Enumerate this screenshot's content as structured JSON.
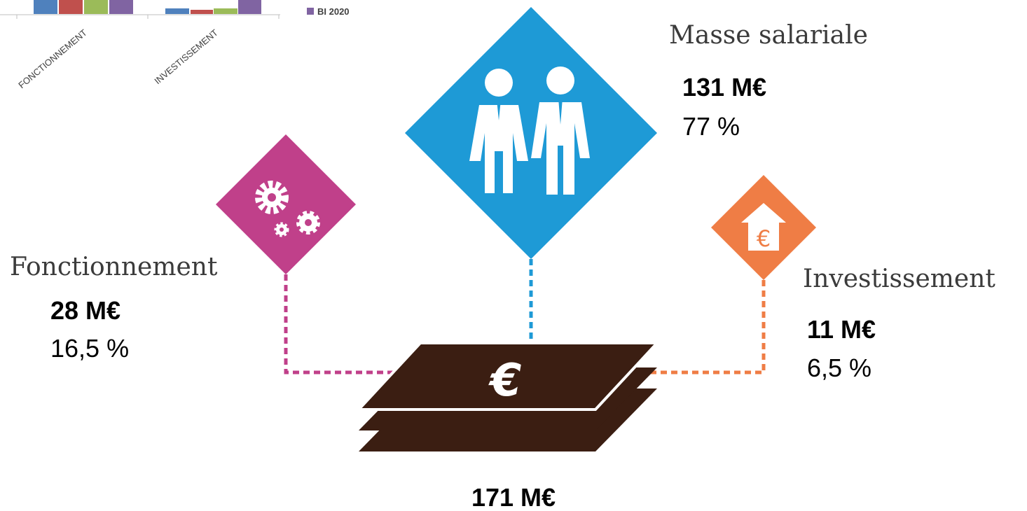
{
  "chart_excerpt": {
    "categories": [
      "FONCTIONNEMENT",
      "INVESTISSEMENT"
    ],
    "legend": "BI 2020"
  },
  "items": [
    {
      "label": "Masse salariale",
      "amount": "131 M€",
      "share": "77 %"
    },
    {
      "label": "Fonctionnement",
      "amount": "28 M€",
      "share": "16,5 %"
    },
    {
      "label": "Investissement",
      "amount": "11 M€",
      "share": "6,5 %"
    }
  ],
  "total": "171 M€"
}
